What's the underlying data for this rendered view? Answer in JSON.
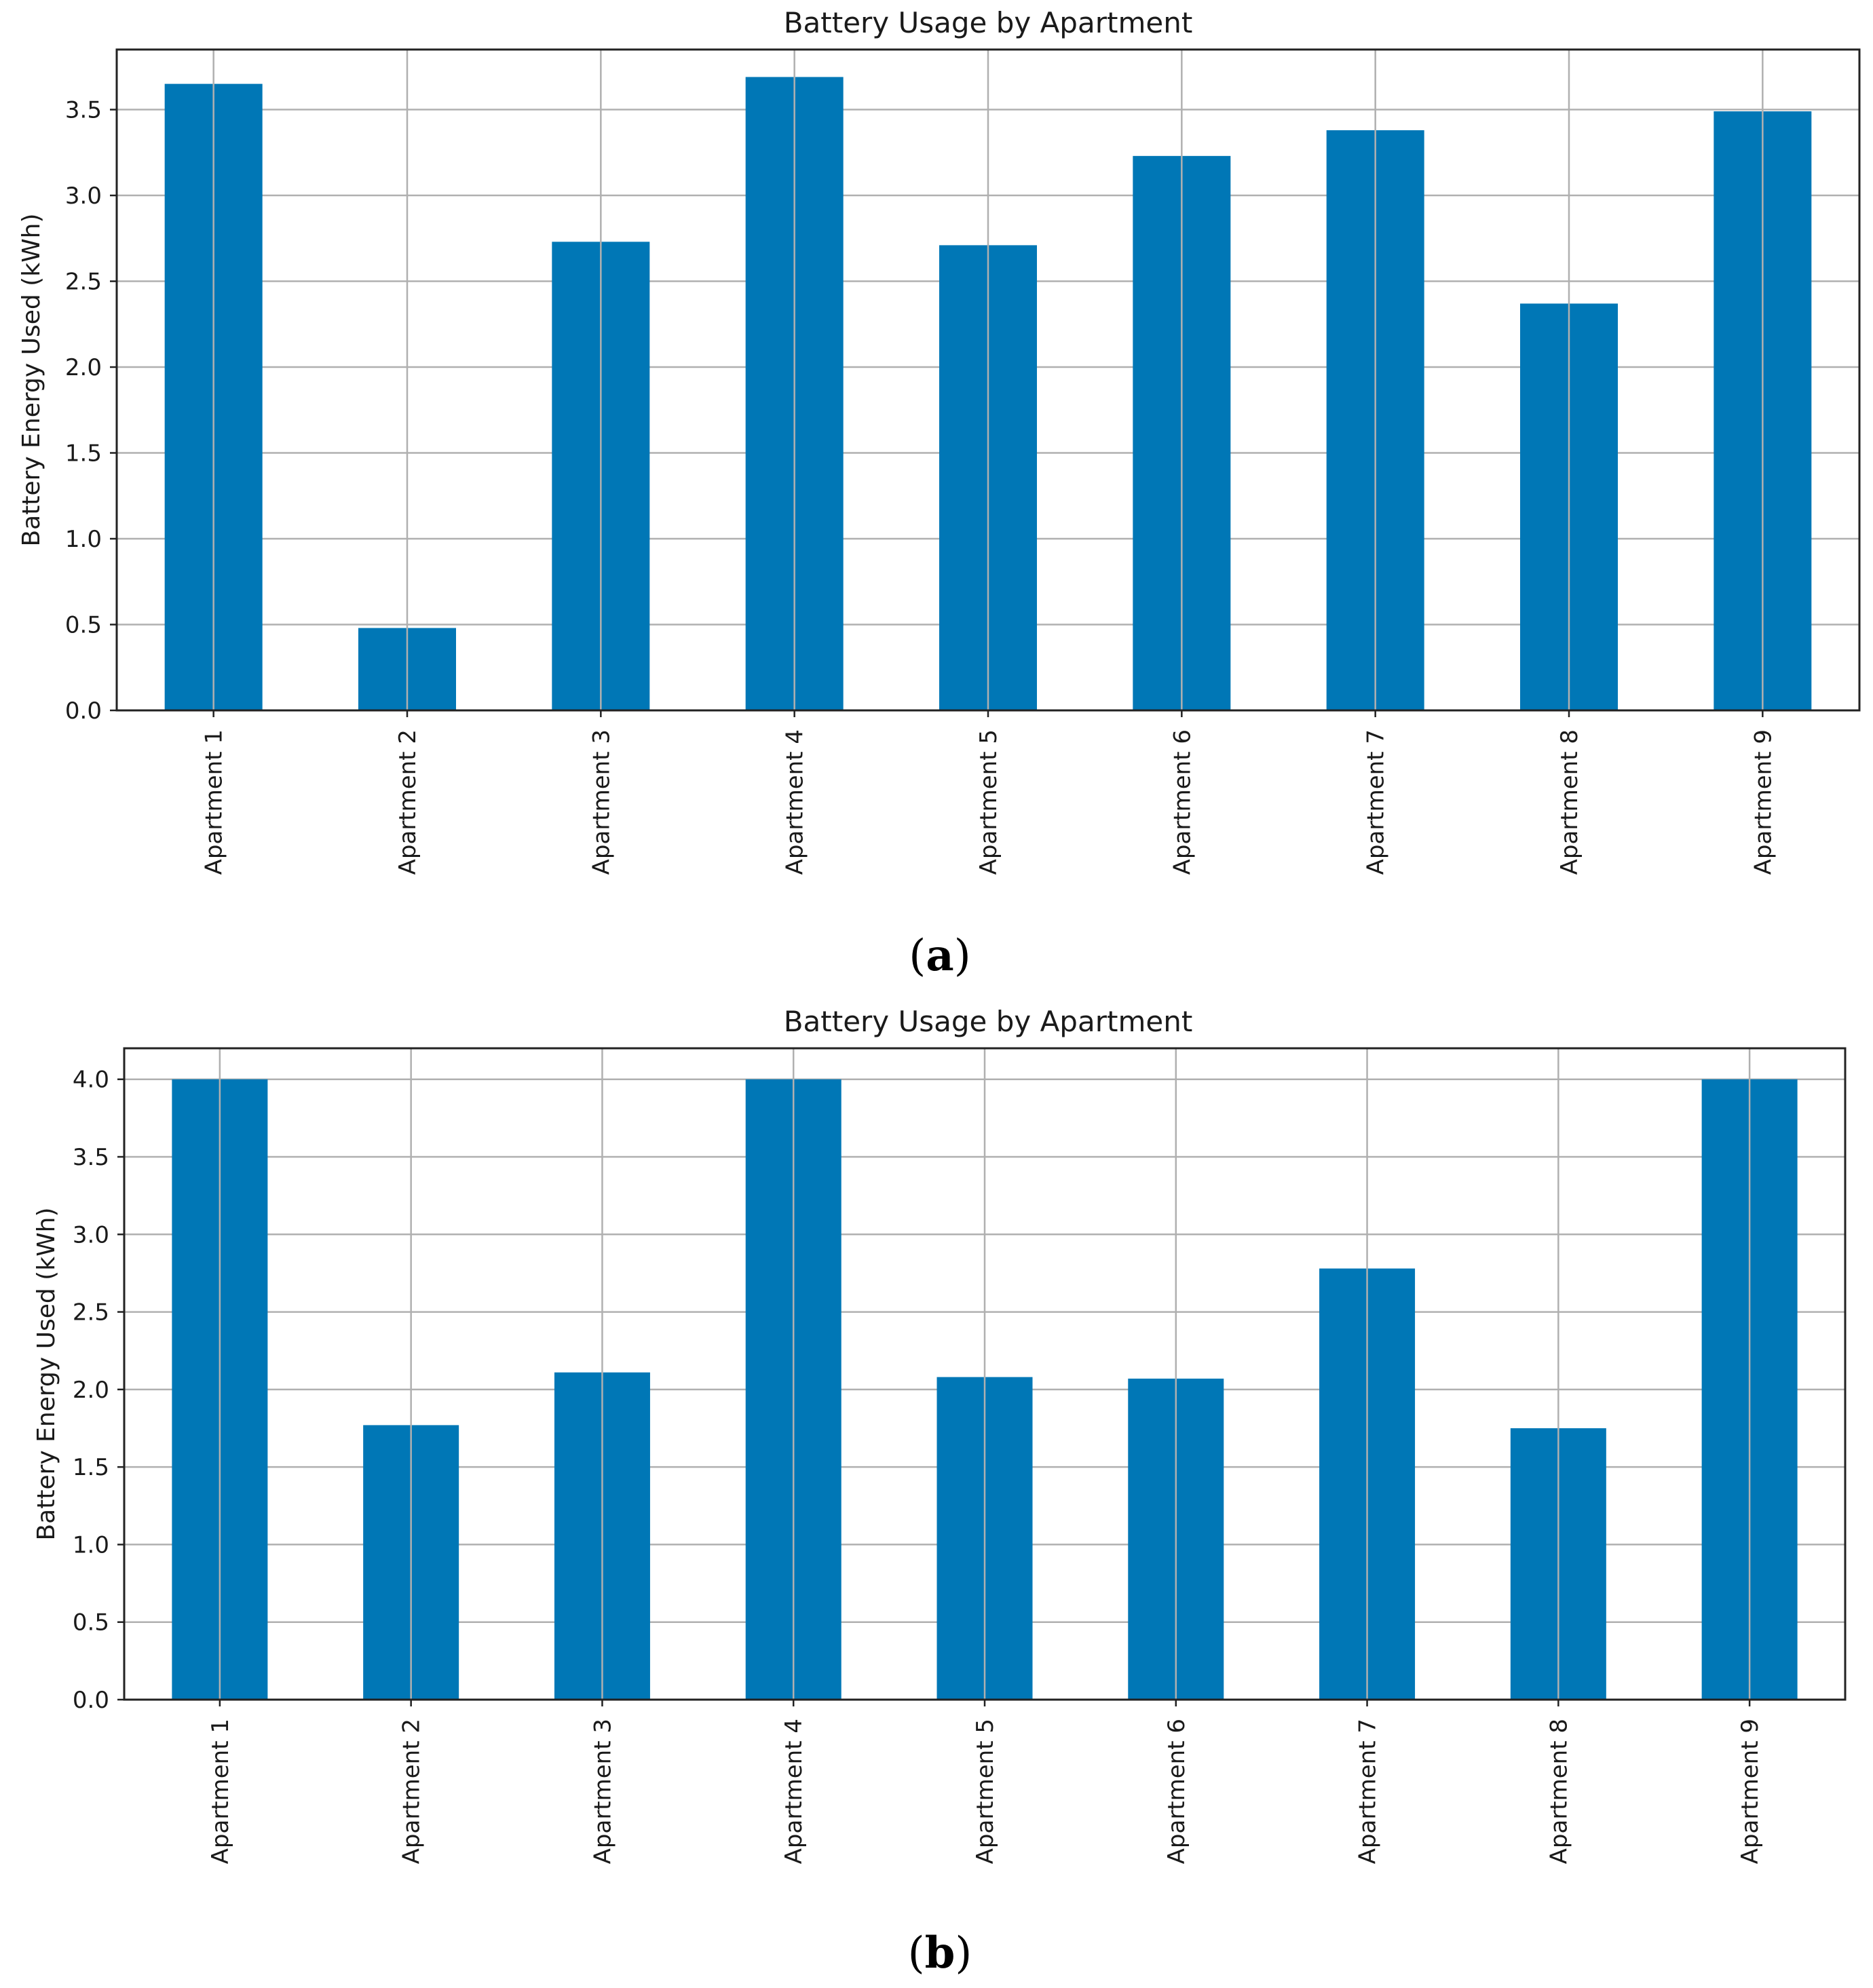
{
  "chart_data": [
    {
      "type": "bar",
      "panel": "a",
      "title": "Battery Usage by Apartment",
      "xlabel": "",
      "ylabel": "Battery Energy Used (kWh)",
      "categories": [
        "Apartment 1",
        "Apartment 2",
        "Apartment 3",
        "Apartment 4",
        "Apartment 5",
        "Apartment 6",
        "Apartment 7",
        "Apartment 8",
        "Apartment 9"
      ],
      "values": [
        3.65,
        0.48,
        2.73,
        3.69,
        2.71,
        3.23,
        3.38,
        2.37,
        3.49
      ],
      "ylim": [
        0,
        3.85
      ],
      "yticks": [
        0.0,
        0.5,
        1.0,
        1.5,
        2.0,
        2.5,
        3.0,
        3.5
      ],
      "ytick_labels": [
        "0.0",
        "0.5",
        "1.0",
        "1.5",
        "2.0",
        "2.5",
        "3.0",
        "3.5"
      ],
      "grid": true,
      "bar_color": "#0077b6"
    },
    {
      "type": "bar",
      "panel": "b",
      "title": "Battery Usage by Apartment",
      "xlabel": "",
      "ylabel": "Battery Energy Used (kWh)",
      "categories": [
        "Apartment 1",
        "Apartment 2",
        "Apartment 3",
        "Apartment 4",
        "Apartment 5",
        "Apartment 6",
        "Apartment 7",
        "Apartment 8",
        "Apartment 9"
      ],
      "values": [
        4.0,
        1.77,
        2.11,
        4.0,
        2.08,
        2.07,
        2.78,
        1.75,
        4.0
      ],
      "ylim": [
        0,
        4.2
      ],
      "yticks": [
        0.0,
        0.5,
        1.0,
        1.5,
        2.0,
        2.5,
        3.0,
        3.5,
        4.0
      ],
      "ytick_labels": [
        "0.0",
        "0.5",
        "1.0",
        "1.5",
        "2.0",
        "2.5",
        "3.0",
        "3.5",
        "4.0"
      ],
      "grid": true,
      "bar_color": "#0077b6"
    }
  ],
  "panel_labels": [
    {
      "open": "(",
      "letter": "a",
      "close": ")"
    },
    {
      "open": "(",
      "letter": "b",
      "close": ")"
    }
  ]
}
